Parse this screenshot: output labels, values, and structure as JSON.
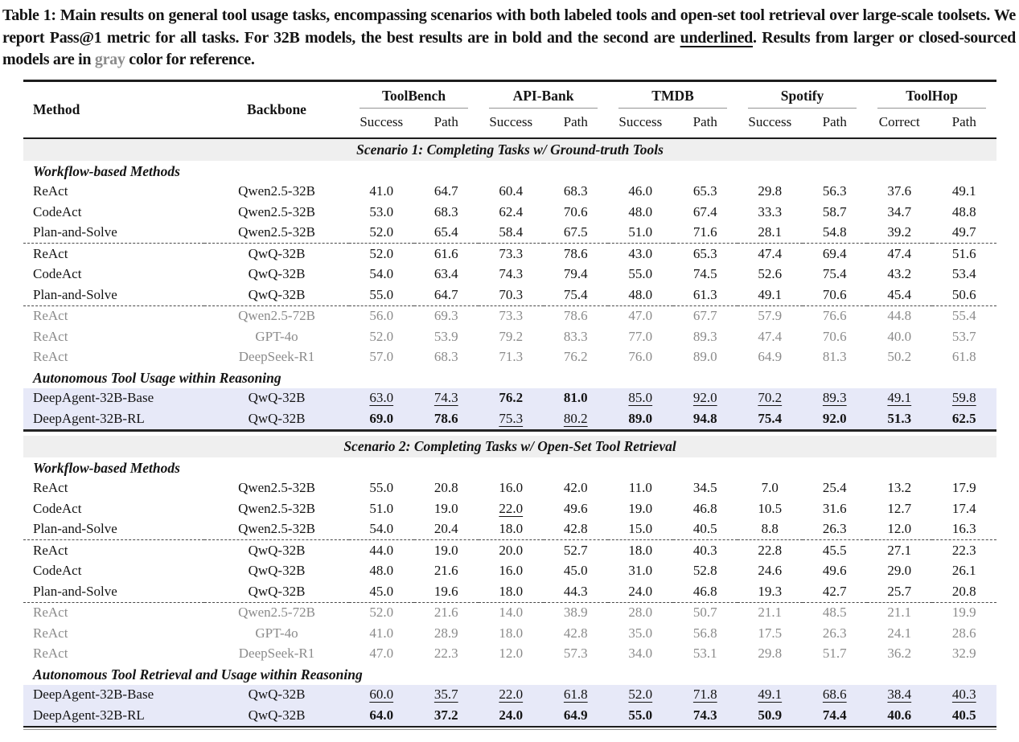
{
  "caption": {
    "seg_main": "Table 1: Main results on general tool usage tasks, encompassing scenarios with both labeled tools and open-set tool retrieval over large-scale toolsets. We report Pass@1 metric for all tasks. For 32B models, the best results are in bold and the second are ",
    "seg_underlined": "underlined",
    "seg_mid": ". Results from larger or closed-sourced models are in ",
    "seg_gray": "gray",
    "seg_end": " color for reference."
  },
  "colors": {
    "highlight_row_bg": "#e7e9f8",
    "banner_bg": "#efefef",
    "gray_text": "#8b8b8b",
    "rule_color": "#1d1d1d"
  },
  "table": {
    "header": {
      "method": "Method",
      "backbone": "Backbone",
      "groups": [
        {
          "name": "ToolBench",
          "sub1": "Success",
          "sub2": "Path"
        },
        {
          "name": "API-Bank",
          "sub1": "Success",
          "sub2": "Path"
        },
        {
          "name": "TMDB",
          "sub1": "Success",
          "sub2": "Path"
        },
        {
          "name": "Spotify",
          "sub1": "Success",
          "sub2": "Path"
        },
        {
          "name": "ToolHop",
          "sub1": "Correct",
          "sub2": "Path"
        }
      ]
    },
    "sections": [
      {
        "banner": "Scenario 1: Completing Tasks w/ Ground-truth Tools",
        "subsections": [
          {
            "label": "Workflow-based Methods",
            "groups": [
              {
                "rows": [
                  {
                    "method": "ReAct",
                    "backbone": "Qwen2.5-32B",
                    "values": [
                      "41.0",
                      "64.7",
                      "60.4",
                      "68.3",
                      "46.0",
                      "65.3",
                      "29.8",
                      "56.3",
                      "37.6",
                      "49.1"
                    ]
                  },
                  {
                    "method": "CodeAct",
                    "backbone": "Qwen2.5-32B",
                    "values": [
                      "53.0",
                      "68.3",
                      "62.4",
                      "70.6",
                      "48.0",
                      "67.4",
                      "33.3",
                      "58.7",
                      "34.7",
                      "48.8"
                    ]
                  },
                  {
                    "method": "Plan-and-Solve",
                    "backbone": "Qwen2.5-32B",
                    "values": [
                      "52.0",
                      "65.4",
                      "58.4",
                      "67.5",
                      "51.0",
                      "71.6",
                      "28.1",
                      "54.8",
                      "39.2",
                      "49.7"
                    ]
                  }
                ]
              },
              {
                "rows": [
                  {
                    "method": "ReAct",
                    "backbone": "QwQ-32B",
                    "values": [
                      "52.0",
                      "61.6",
                      "73.3",
                      "78.6",
                      "43.0",
                      "65.3",
                      "47.4",
                      "69.4",
                      "47.4",
                      "51.6"
                    ]
                  },
                  {
                    "method": "CodeAct",
                    "backbone": "QwQ-32B",
                    "values": [
                      "54.0",
                      "63.4",
                      "74.3",
                      "79.4",
                      "55.0",
                      "74.5",
                      "52.6",
                      "75.4",
                      "43.2",
                      "53.4"
                    ]
                  },
                  {
                    "method": "Plan-and-Solve",
                    "backbone": "QwQ-32B",
                    "values": [
                      "55.0",
                      "64.7",
                      "70.3",
                      "75.4",
                      "48.0",
                      "61.3",
                      "49.1",
                      "70.6",
                      "45.4",
                      "50.6"
                    ]
                  }
                ]
              },
              {
                "gray": true,
                "rows": [
                  {
                    "method": "ReAct",
                    "backbone": "Qwen2.5-72B",
                    "values": [
                      "56.0",
                      "69.3",
                      "73.3",
                      "78.6",
                      "47.0",
                      "67.7",
                      "57.9",
                      "76.6",
                      "44.8",
                      "55.4"
                    ]
                  },
                  {
                    "method": "ReAct",
                    "backbone": "GPT-4o",
                    "values": [
                      "52.0",
                      "53.9",
                      "79.2",
                      "83.3",
                      "77.0",
                      "89.3",
                      "47.4",
                      "70.6",
                      "40.0",
                      "53.7"
                    ]
                  },
                  {
                    "method": "ReAct",
                    "backbone": "DeepSeek-R1",
                    "values": [
                      "57.0",
                      "68.3",
                      "71.3",
                      "76.2",
                      "76.0",
                      "89.0",
                      "64.9",
                      "81.3",
                      "50.2",
                      "61.8"
                    ]
                  }
                ]
              }
            ]
          },
          {
            "label": "Autonomous Tool Usage within Reasoning",
            "groups": [
              {
                "highlight": true,
                "rows": [
                  {
                    "method": "DeepAgent-32B-Base",
                    "backbone": "QwQ-32B",
                    "values": [
                      "63.0",
                      "74.3",
                      "76.2",
                      "81.0",
                      "85.0",
                      "92.0",
                      "70.2",
                      "89.3",
                      "49.1",
                      "59.8"
                    ],
                    "styles": [
                      "u",
                      "u",
                      "b",
                      "b",
                      "u",
                      "u",
                      "u",
                      "u",
                      "u",
                      "u"
                    ]
                  },
                  {
                    "method": "DeepAgent-32B-RL",
                    "backbone": "QwQ-32B",
                    "values": [
                      "69.0",
                      "78.6",
                      "75.3",
                      "80.2",
                      "89.0",
                      "94.8",
                      "75.4",
                      "92.0",
                      "51.3",
                      "62.5"
                    ],
                    "styles": [
                      "b",
                      "b",
                      "u",
                      "u",
                      "b",
                      "b",
                      "b",
                      "b",
                      "b",
                      "b"
                    ]
                  }
                ]
              }
            ]
          }
        ]
      },
      {
        "banner": "Scenario 2: Completing Tasks w/ Open-Set Tool Retrieval",
        "subsections": [
          {
            "label": "Workflow-based Methods",
            "groups": [
              {
                "rows": [
                  {
                    "method": "ReAct",
                    "backbone": "Qwen2.5-32B",
                    "values": [
                      "55.0",
                      "20.8",
                      "16.0",
                      "42.0",
                      "11.0",
                      "34.5",
                      "7.0",
                      "25.4",
                      "13.2",
                      "17.9"
                    ]
                  },
                  {
                    "method": "CodeAct",
                    "backbone": "Qwen2.5-32B",
                    "values": [
                      "51.0",
                      "19.0",
                      "22.0",
                      "49.6",
                      "19.0",
                      "46.8",
                      "10.5",
                      "31.6",
                      "12.7",
                      "17.4"
                    ],
                    "styles": [
                      "",
                      "",
                      "u",
                      "",
                      "",
                      "",
                      "",
                      "",
                      "",
                      ""
                    ]
                  },
                  {
                    "method": "Plan-and-Solve",
                    "backbone": "Qwen2.5-32B",
                    "values": [
                      "54.0",
                      "20.4",
                      "18.0",
                      "42.8",
                      "15.0",
                      "40.5",
                      "8.8",
                      "26.3",
                      "12.0",
                      "16.3"
                    ]
                  }
                ]
              },
              {
                "rows": [
                  {
                    "method": "ReAct",
                    "backbone": "QwQ-32B",
                    "values": [
                      "44.0",
                      "19.0",
                      "20.0",
                      "52.7",
                      "18.0",
                      "40.3",
                      "22.8",
                      "45.5",
                      "27.1",
                      "22.3"
                    ]
                  },
                  {
                    "method": "CodeAct",
                    "backbone": "QwQ-32B",
                    "values": [
                      "48.0",
                      "21.6",
                      "16.0",
                      "45.0",
                      "31.0",
                      "52.8",
                      "24.6",
                      "49.6",
                      "29.0",
                      "26.1"
                    ]
                  },
                  {
                    "method": "Plan-and-Solve",
                    "backbone": "QwQ-32B",
                    "values": [
                      "45.0",
                      "19.6",
                      "18.0",
                      "44.3",
                      "24.0",
                      "46.8",
                      "19.3",
                      "42.7",
                      "25.7",
                      "20.8"
                    ]
                  }
                ]
              },
              {
                "gray": true,
                "rows": [
                  {
                    "method": "ReAct",
                    "backbone": "Qwen2.5-72B",
                    "values": [
                      "52.0",
                      "21.6",
                      "14.0",
                      "38.9",
                      "28.0",
                      "50.7",
                      "21.1",
                      "48.5",
                      "21.1",
                      "19.9"
                    ]
                  },
                  {
                    "method": "ReAct",
                    "backbone": "GPT-4o",
                    "values": [
                      "41.0",
                      "28.9",
                      "18.0",
                      "42.8",
                      "35.0",
                      "56.8",
                      "17.5",
                      "26.3",
                      "24.1",
                      "28.6"
                    ]
                  },
                  {
                    "method": "ReAct",
                    "backbone": "DeepSeek-R1",
                    "values": [
                      "47.0",
                      "22.3",
                      "12.0",
                      "57.3",
                      "34.0",
                      "53.1",
                      "29.8",
                      "51.7",
                      "36.2",
                      "32.9"
                    ]
                  }
                ]
              }
            ]
          },
          {
            "label": "Autonomous Tool Retrieval and Usage within Reasoning",
            "groups": [
              {
                "highlight": true,
                "rows": [
                  {
                    "method": "DeepAgent-32B-Base",
                    "backbone": "QwQ-32B",
                    "values": [
                      "60.0",
                      "35.7",
                      "22.0",
                      "61.8",
                      "52.0",
                      "71.8",
                      "49.1",
                      "68.6",
                      "38.4",
                      "40.3"
                    ],
                    "styles": [
                      "u",
                      "u",
                      "u",
                      "u",
                      "u",
                      "u",
                      "u",
                      "u",
                      "u",
                      "u"
                    ]
                  },
                  {
                    "method": "DeepAgent-32B-RL",
                    "backbone": "QwQ-32B",
                    "values": [
                      "64.0",
                      "37.2",
                      "24.0",
                      "64.9",
                      "55.0",
                      "74.3",
                      "50.9",
                      "74.4",
                      "40.6",
                      "40.5"
                    ],
                    "styles": [
                      "b",
                      "b",
                      "b",
                      "b",
                      "b",
                      "b",
                      "b",
                      "b",
                      "b",
                      "b"
                    ]
                  }
                ]
              }
            ]
          }
        ]
      }
    ]
  }
}
